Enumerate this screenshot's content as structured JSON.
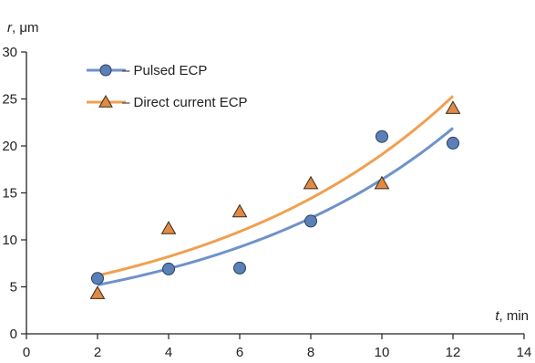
{
  "chart_data": {
    "type": "scatter",
    "xlabel": {
      "var": "t",
      "unit": ", min"
    },
    "ylabel": {
      "var": "r",
      "unit": ", μm"
    },
    "xlim": [
      0,
      14
    ],
    "ylim": [
      0,
      30
    ],
    "xticks": [
      "0",
      "2",
      "4",
      "6",
      "8",
      "10",
      "12",
      "14"
    ],
    "yticks": [
      "0",
      "5",
      "10",
      "15",
      "20",
      "25",
      "30"
    ],
    "legend_position": "top-left",
    "series": [
      {
        "name": "Pulsed ECP",
        "legend_label": "– Pulsed ECP",
        "marker": "circle",
        "marker_color": "#5b80b8",
        "line_color": "#6f92c8",
        "x": [
          2,
          4,
          6,
          8,
          10,
          12
        ],
        "y": [
          5.9,
          6.9,
          7.0,
          12.0,
          21.0,
          20.3
        ],
        "trend": {
          "type": "exponential",
          "x": [
            2,
            4,
            6,
            8,
            10,
            12
          ],
          "y": [
            5.2,
            7.0,
            9.2,
            12.3,
            16.4,
            21.9
          ]
        }
      },
      {
        "name": "Direct current ECP",
        "legend_label": "– Direct current ECP",
        "marker": "triangle",
        "marker_color": "#e08a45",
        "line_color": "#f0a050",
        "x": [
          2,
          4,
          6,
          8,
          10,
          12
        ],
        "y": [
          4.3,
          11.2,
          13.0,
          16.0,
          16.0,
          24.0
        ],
        "trend": {
          "type": "exponential",
          "x": [
            2,
            4,
            6,
            8,
            10,
            12
          ],
          "y": [
            6.2,
            8.2,
            10.8,
            14.3,
            19.0,
            25.3
          ]
        }
      }
    ]
  }
}
